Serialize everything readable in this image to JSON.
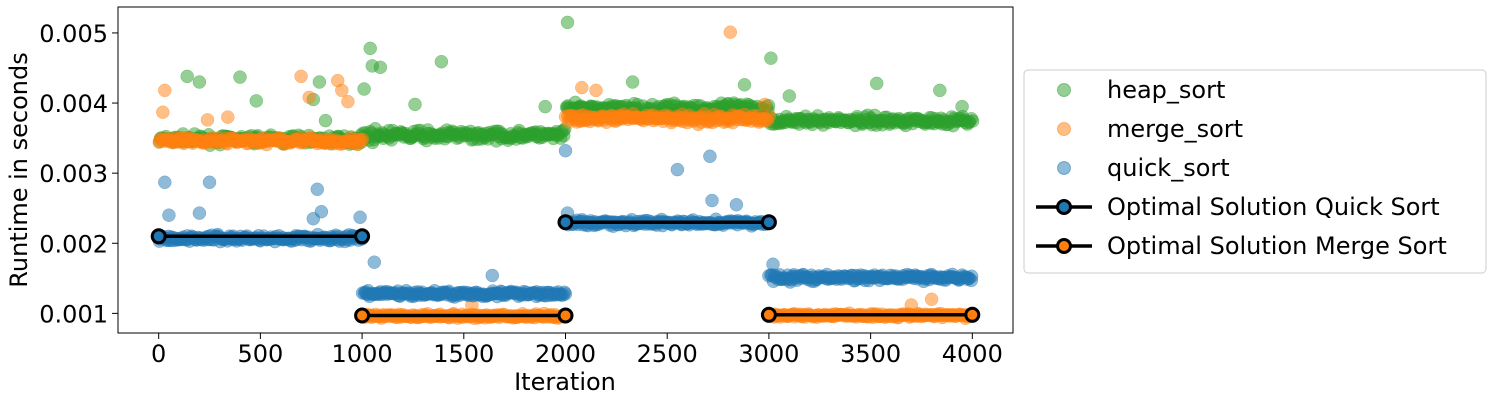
{
  "chart_data": {
    "type": "scatter",
    "title": "",
    "xlabel": "Iteration",
    "ylabel": "Runtime in seconds",
    "xlim": [
      -200,
      4200
    ],
    "ylim": [
      0.00072,
      0.00537
    ],
    "xticks": [
      0,
      500,
      1000,
      1500,
      2000,
      2500,
      3000,
      3500,
      4000
    ],
    "xtick_labels": [
      "0",
      "500",
      "1000",
      "1500",
      "2000",
      "2500",
      "3000",
      "3500",
      "4000"
    ],
    "yticks": [
      0.001,
      0.002,
      0.003,
      0.004,
      0.005
    ],
    "ytick_labels": [
      "0.001",
      "0.002",
      "0.003",
      "0.004",
      "0.005"
    ],
    "grid": false,
    "legend_position": "outside-right",
    "scatter_series": [
      {
        "name": "heap_sort",
        "color": "#2ca02c",
        "segments": [
          {
            "x_range": [
              0,
              1000
            ],
            "y_mean": 0.00348,
            "y_spread": 6e-05
          },
          {
            "x_range": [
              1000,
              2000
            ],
            "y_mean": 0.00354,
            "y_spread": 7e-05
          },
          {
            "x_range": [
              2000,
              3000
            ],
            "y_mean": 0.00392,
            "y_spread": 8e-05
          },
          {
            "x_range": [
              3000,
              4000
            ],
            "y_mean": 0.00375,
            "y_spread": 6e-05
          }
        ],
        "outliers": [
          [
            140,
            0.00438
          ],
          [
            200,
            0.0043
          ],
          [
            400,
            0.00437
          ],
          [
            480,
            0.00403
          ],
          [
            760,
            0.00405
          ],
          [
            790,
            0.0043
          ],
          [
            820,
            0.00375
          ],
          [
            1040,
            0.00478
          ],
          [
            1050,
            0.00453
          ],
          [
            1090,
            0.00451
          ],
          [
            1010,
            0.0042
          ],
          [
            1260,
            0.00398
          ],
          [
            1390,
            0.00459
          ],
          [
            1900,
            0.00395
          ],
          [
            2010,
            0.00515
          ],
          [
            2330,
            0.0043
          ],
          [
            2880,
            0.00426
          ],
          [
            3010,
            0.00464
          ],
          [
            3100,
            0.0041
          ],
          [
            3530,
            0.00428
          ],
          [
            3840,
            0.00418
          ],
          [
            3950,
            0.00395
          ]
        ]
      },
      {
        "name": "merge_sort",
        "color": "#ff7f0e",
        "segments": [
          {
            "x_range": [
              0,
              1000
            ],
            "y_mean": 0.00346,
            "y_spread": 5e-05
          },
          {
            "x_range": [
              1000,
              2000
            ],
            "y_mean": 0.00096,
            "y_spread": 3e-05
          },
          {
            "x_range": [
              2000,
              3000
            ],
            "y_mean": 0.00378,
            "y_spread": 6e-05
          },
          {
            "x_range": [
              3000,
              4000
            ],
            "y_mean": 0.00097,
            "y_spread": 3e-05
          }
        ],
        "outliers": [
          [
            20,
            0.00387
          ],
          [
            30,
            0.00418
          ],
          [
            240,
            0.00376
          ],
          [
            340,
            0.0038
          ],
          [
            700,
            0.00438
          ],
          [
            740,
            0.00408
          ],
          [
            880,
            0.00432
          ],
          [
            900,
            0.00418
          ],
          [
            930,
            0.00402
          ],
          [
            1540,
            0.00112
          ],
          [
            2080,
            0.00422
          ],
          [
            2150,
            0.00418
          ],
          [
            2810,
            0.00501
          ],
          [
            2980,
            0.00398
          ],
          [
            3700,
            0.00112
          ],
          [
            3800,
            0.0012
          ]
        ]
      },
      {
        "name": "quick_sort",
        "color": "#1f77b4",
        "segments": [
          {
            "x_range": [
              0,
              1000
            ],
            "y_mean": 0.00207,
            "y_spread": 5e-05
          },
          {
            "x_range": [
              1000,
              2000
            ],
            "y_mean": 0.00128,
            "y_spread": 4e-05
          },
          {
            "x_range": [
              2000,
              3000
            ],
            "y_mean": 0.00229,
            "y_spread": 4e-05
          },
          {
            "x_range": [
              3000,
              4000
            ],
            "y_mean": 0.00151,
            "y_spread": 5e-05
          }
        ],
        "outliers": [
          [
            30,
            0.00287
          ],
          [
            50,
            0.0024
          ],
          [
            250,
            0.00287
          ],
          [
            200,
            0.00243
          ],
          [
            780,
            0.00277
          ],
          [
            760,
            0.00235
          ],
          [
            800,
            0.00245
          ],
          [
            990,
            0.00237
          ],
          [
            1060,
            0.00173
          ],
          [
            1640,
            0.00154
          ],
          [
            2000,
            0.00332
          ],
          [
            2010,
            0.00243
          ],
          [
            2550,
            0.00305
          ],
          [
            2710,
            0.00324
          ],
          [
            2720,
            0.00261
          ],
          [
            2840,
            0.00255
          ],
          [
            3020,
            0.0017
          ]
        ]
      }
    ],
    "line_series": [
      {
        "name": "Optimal Solution Quick Sort",
        "line_color": "#000000",
        "marker_fill": "#1f77b4",
        "x": [
          0,
          1000,
          null,
          2000,
          3000
        ],
        "y": [
          0.0021,
          0.0021,
          null,
          0.0023,
          0.0023
        ]
      },
      {
        "name": "Optimal Solution Merge Sort",
        "line_color": "#000000",
        "marker_fill": "#ff7f0e",
        "x": [
          1000,
          2000,
          null,
          3000,
          4000
        ],
        "y": [
          0.00097,
          0.00097,
          null,
          0.00098,
          0.00098
        ]
      }
    ]
  }
}
